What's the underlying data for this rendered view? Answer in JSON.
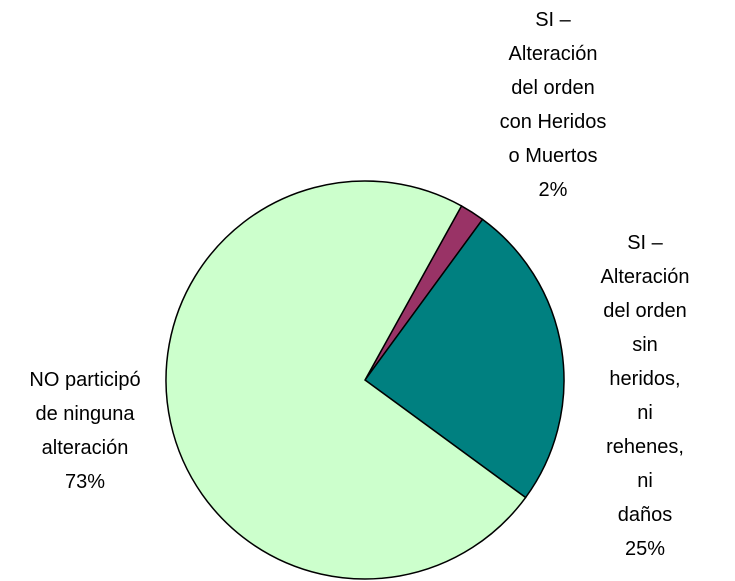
{
  "chart_data": {
    "type": "pie",
    "categories": [
      "SI –\nAlteración\ndel orden\ncon Heridos\no Muertos",
      "SI –\nAlteración\ndel orden sin\nheridos, ni\nrehenes, ni\ndaños",
      "NO participó\nde ninguna\nalteración"
    ],
    "values": [
      2,
      25,
      73
    ],
    "value_labels": [
      "2%",
      "25%",
      "73%"
    ],
    "colors": [
      "#993366",
      "#008080",
      "#CCFFCC"
    ],
    "startangle": 29,
    "counterclock": false
  }
}
